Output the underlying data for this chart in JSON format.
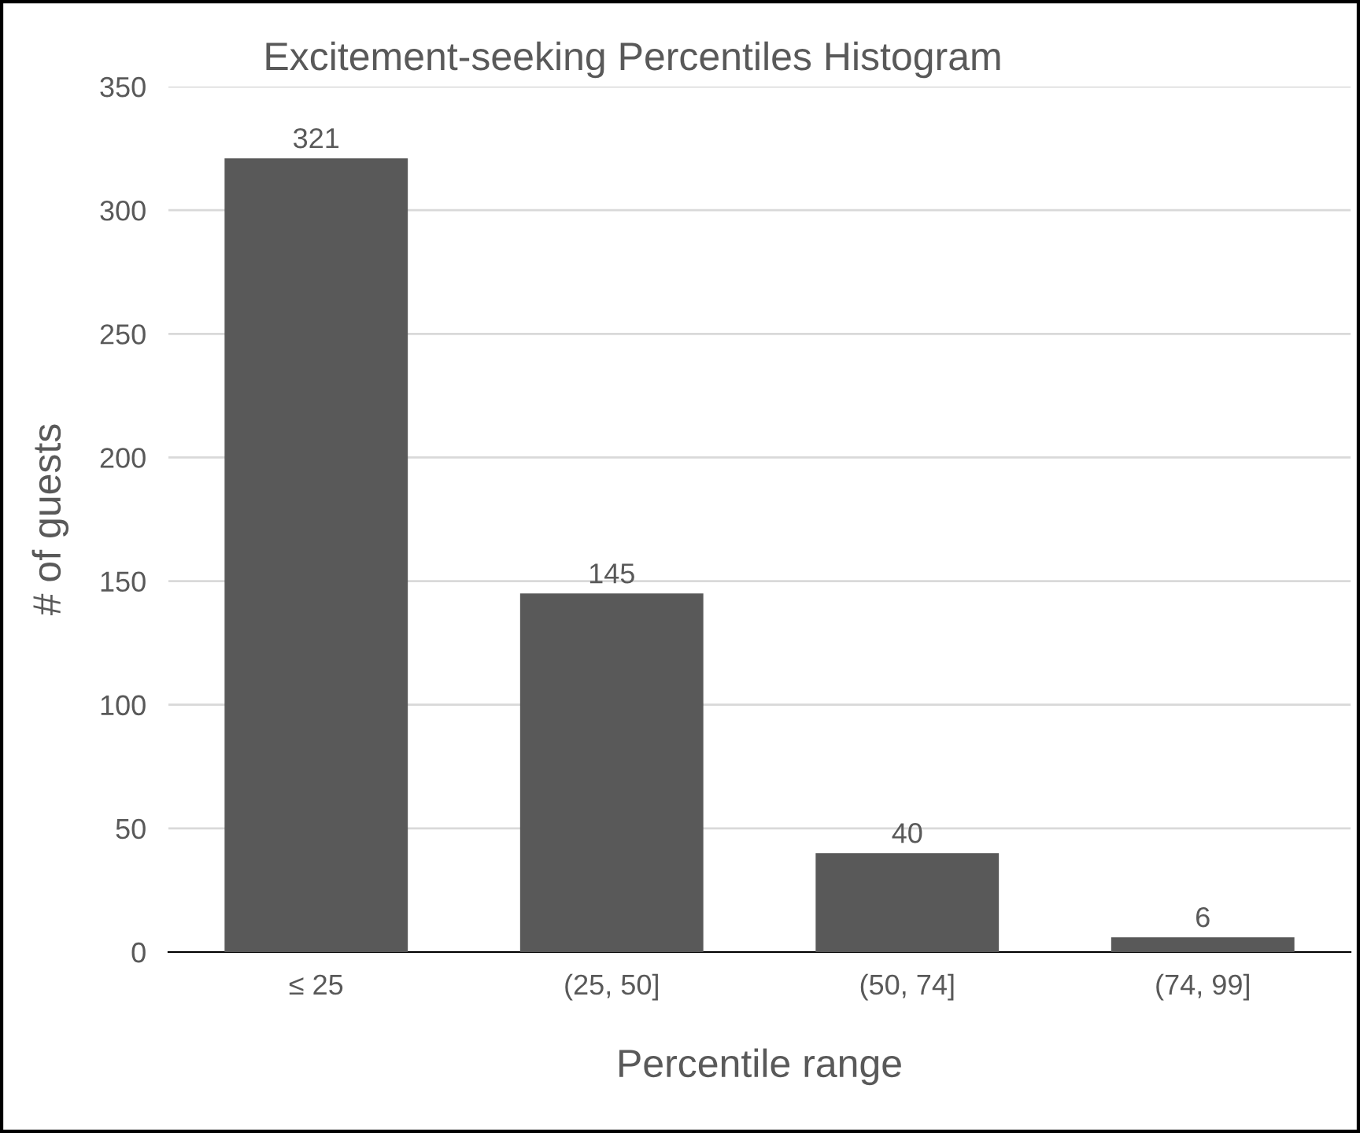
{
  "chart_data": {
    "type": "bar",
    "title": "Excitement-seeking Percentiles Histogram",
    "xlabel": "Percentile range",
    "ylabel": "# of guests",
    "categories": [
      "≤ 25",
      "(25, 50]",
      "(50, 74]",
      "(74, 99]"
    ],
    "values": [
      321,
      145,
      40,
      6
    ],
    "color": "#595959",
    "ylim": [
      0,
      350
    ],
    "yticks": [
      0,
      50,
      100,
      150,
      200,
      250,
      300,
      350
    ],
    "grid": "y",
    "data_labels": true
  }
}
